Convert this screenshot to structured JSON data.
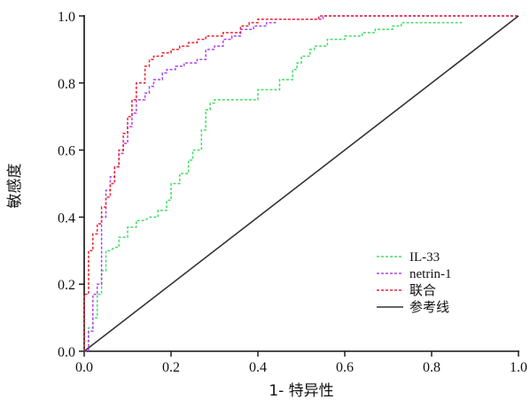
{
  "chart_data": {
    "type": "line",
    "title": "",
    "xlabel": "1- 特异性",
    "ylabel": "敏感度",
    "xlim": [
      0,
      1.0
    ],
    "ylim": [
      0,
      1.0
    ],
    "x_ticks": [
      "0.0",
      "0.2",
      "0.4",
      "0.6",
      "0.8",
      "1.0"
    ],
    "y_ticks": [
      "0.0",
      "0.2",
      "0.4",
      "0.6",
      "0.8",
      "1.0"
    ],
    "grid": false,
    "legend_position": "bottom-right",
    "series": [
      {
        "name": "IL-33",
        "color": "#44dd66",
        "dash": "dashed",
        "x": [
          0,
          0,
          0.01,
          0.01,
          0.02,
          0.02,
          0.03,
          0.03,
          0.04,
          0.04,
          0.05,
          0.05,
          0.06,
          0.07,
          0.08,
          0.08,
          0.1,
          0.1,
          0.12,
          0.12,
          0.14,
          0.15,
          0.17,
          0.17,
          0.19,
          0.19,
          0.2,
          0.2,
          0.22,
          0.22,
          0.24,
          0.24,
          0.25,
          0.25,
          0.27,
          0.27,
          0.28,
          0.28,
          0.29,
          0.29,
          0.3,
          0.3,
          0.31,
          0.31,
          0.33,
          0.38,
          0.4,
          0.4,
          0.41,
          0.41,
          0.45,
          0.45,
          0.48,
          0.48,
          0.49,
          0.49,
          0.5,
          0.5,
          0.52,
          0.52,
          0.53,
          0.53,
          0.55,
          0.55,
          0.56,
          0.56,
          0.6,
          0.6,
          0.64,
          0.64,
          0.67,
          0.67,
          0.71,
          0.71,
          0.73,
          0.73,
          0.75,
          0.75,
          0.79,
          0.79,
          0.84,
          0.87
        ],
        "y": [
          0,
          0.03,
          0.03,
          0.07,
          0.07,
          0.1,
          0.1,
          0.17,
          0.17,
          0.24,
          0.24,
          0.3,
          0.3,
          0.31,
          0.31,
          0.34,
          0.34,
          0.37,
          0.37,
          0.39,
          0.39,
          0.4,
          0.4,
          0.42,
          0.42,
          0.45,
          0.45,
          0.5,
          0.5,
          0.53,
          0.53,
          0.57,
          0.57,
          0.6,
          0.6,
          0.66,
          0.66,
          0.72,
          0.72,
          0.74,
          0.74,
          0.75,
          0.75,
          0.75,
          0.75,
          0.75,
          0.75,
          0.78,
          0.78,
          0.78,
          0.78,
          0.81,
          0.81,
          0.84,
          0.84,
          0.86,
          0.86,
          0.88,
          0.88,
          0.9,
          0.9,
          0.91,
          0.91,
          0.91,
          0.91,
          0.93,
          0.93,
          0.94,
          0.94,
          0.95,
          0.95,
          0.96,
          0.96,
          0.97,
          0.97,
          0.98,
          0.98,
          0.98,
          0.98,
          0.98,
          0.98,
          0.98
        ]
      },
      {
        "name": "netrin-1",
        "color": "#aa44ee",
        "dash": "dashed",
        "x": [
          0,
          0.01,
          0.01,
          0.02,
          0.02,
          0.03,
          0.03,
          0.04,
          0.04,
          0.05,
          0.05,
          0.06,
          0.06,
          0.07,
          0.07,
          0.08,
          0.08,
          0.09,
          0.09,
          0.1,
          0.1,
          0.11,
          0.11,
          0.12,
          0.12,
          0.14,
          0.14,
          0.15,
          0.15,
          0.16,
          0.16,
          0.18,
          0.18,
          0.19,
          0.19,
          0.21,
          0.21,
          0.23,
          0.23,
          0.26,
          0.26,
          0.28,
          0.28,
          0.3,
          0.3,
          0.32,
          0.32,
          0.34,
          0.34,
          0.36,
          0.36,
          0.39,
          0.39,
          0.42,
          0.42,
          0.44,
          0.44,
          0.55,
          0.55,
          0.6,
          0.6,
          1.0
        ],
        "y": [
          0,
          0,
          0.06,
          0.06,
          0.17,
          0.17,
          0.2,
          0.2,
          0.4,
          0.4,
          0.48,
          0.48,
          0.52,
          0.52,
          0.55,
          0.55,
          0.59,
          0.59,
          0.62,
          0.62,
          0.67,
          0.67,
          0.71,
          0.71,
          0.75,
          0.75,
          0.77,
          0.77,
          0.79,
          0.79,
          0.81,
          0.81,
          0.83,
          0.83,
          0.84,
          0.84,
          0.85,
          0.85,
          0.86,
          0.86,
          0.87,
          0.87,
          0.9,
          0.9,
          0.91,
          0.91,
          0.93,
          0.93,
          0.94,
          0.94,
          0.96,
          0.96,
          0.97,
          0.97,
          0.98,
          0.98,
          0.99,
          0.99,
          1.0,
          1.0,
          1.0,
          1.0
        ]
      },
      {
        "name": "联合",
        "color": "#ee2233",
        "dash": "dashed",
        "x": [
          0,
          0,
          0.01,
          0.01,
          0.02,
          0.02,
          0.03,
          0.03,
          0.04,
          0.04,
          0.05,
          0.05,
          0.06,
          0.06,
          0.07,
          0.07,
          0.08,
          0.08,
          0.09,
          0.09,
          0.1,
          0.1,
          0.11,
          0.11,
          0.12,
          0.12,
          0.14,
          0.14,
          0.15,
          0.15,
          0.16,
          0.16,
          0.18,
          0.18,
          0.2,
          0.2,
          0.22,
          0.22,
          0.24,
          0.24,
          0.26,
          0.26,
          0.28,
          0.28,
          0.32,
          0.32,
          0.36,
          0.36,
          0.38,
          0.38,
          0.4,
          0.4,
          0.43,
          0.43,
          0.54,
          0.54,
          1.0
        ],
        "y": [
          0,
          0.17,
          0.17,
          0.3,
          0.3,
          0.35,
          0.35,
          0.38,
          0.38,
          0.43,
          0.43,
          0.46,
          0.46,
          0.5,
          0.5,
          0.55,
          0.55,
          0.6,
          0.6,
          0.65,
          0.65,
          0.7,
          0.7,
          0.75,
          0.75,
          0.8,
          0.8,
          0.85,
          0.85,
          0.87,
          0.87,
          0.88,
          0.88,
          0.89,
          0.89,
          0.9,
          0.9,
          0.91,
          0.91,
          0.92,
          0.92,
          0.93,
          0.93,
          0.94,
          0.94,
          0.95,
          0.95,
          0.97,
          0.97,
          0.98,
          0.98,
          0.99,
          0.99,
          0.99,
          0.99,
          1.0,
          1.0
        ]
      },
      {
        "name": "参考线",
        "color": "#333333",
        "dash": "solid",
        "x": [
          0,
          1.0
        ],
        "y": [
          0,
          1.0
        ]
      }
    ]
  }
}
